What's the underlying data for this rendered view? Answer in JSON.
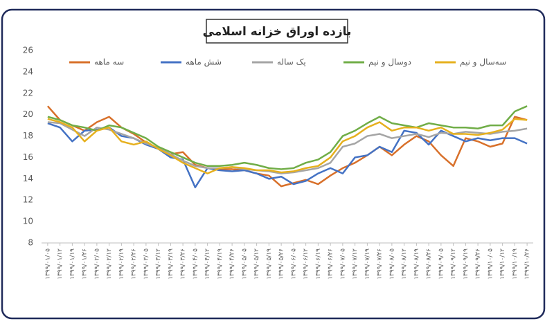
{
  "chart_data": {
    "type": "line",
    "title": "بازده اوراق خزانه اسلامی",
    "categories": [
      "۱۳۹۹/۰۱/۰۵",
      "۱۳۹۹/۰۱/۱۲",
      "۱۳۹۹/۰۱/۱۹",
      "۱۳۹۹/۰۱/۲۶",
      "۱۳۹۹/۰۲/۰۵",
      "۱۳۹۹/۰۲/۱۲",
      "۱۳۹۹/۰۲/۱۹",
      "۱۳۹۹/۰۲/۲۶",
      "۱۳۹۹/۰۳/۰۵",
      "۱۳۹۹/۰۳/۱۲",
      "۱۳۹۹/۰۳/۱۹",
      "۱۳۹۹/۰۳/۲۶",
      "۱۳۹۹/۰۴/۰۵",
      "۱۳۹۹/۰۴/۱۲",
      "۱۳۹۹/۰۴/۱۹",
      "۱۳۹۹/۰۴/۲۶",
      "۱۳۹۹/۰۵/۰۵",
      "۱۳۹۹/۰۵/۱۲",
      "۱۳۹۹/۰۵/۱۹",
      "۱۳۹۹/۰۵/۲۶",
      "۱۳۹۹/۰۶/۰۵",
      "۱۳۹۹/۰۶/۱۲",
      "۱۳۹۹/۰۶/۱۹",
      "۱۳۹۹/۰۶/۲۶",
      "۱۳۹۹/۰۷/۰۵",
      "۱۳۹۹/۰۷/۱۲",
      "۱۳۹۹/۰۷/۱۹",
      "۱۳۹۹/۰۷/۲۶",
      "۱۳۹۹/۰۸/۰۵",
      "۱۳۹۹/۰۸/۱۲",
      "۱۳۹۹/۰۸/۱۹",
      "۱۳۹۹/۰۸/۲۶",
      "۱۳۹۹/۰۹/۰۵",
      "۱۳۹۹/۰۹/۱۲",
      "۱۳۹۹/۰۹/۱۹",
      "۱۳۹۹/۰۹/۲۶",
      "۱۳۹۹/۱۰/۰۵",
      "۱۳۹۹/۱۰/۱۲",
      "۱۳۹۹/۱۰/۱۹",
      "۱۳۹۹/۱۰/۲۶"
    ],
    "series": [
      {
        "name": "سه ماهه",
        "color": "#d8702a",
        "values": [
          20.8,
          19.5,
          19,
          18.5,
          19.3,
          19.8,
          18.8,
          18.2,
          17.4,
          16.8,
          16.3,
          16.5,
          15.3,
          15,
          14.9,
          14.9,
          14.8,
          14.5,
          14.3,
          13.3,
          13.6,
          13.9,
          13.5,
          14.3,
          15,
          15.5,
          16.2,
          17,
          16.2,
          17.2,
          18,
          17.5,
          16.2,
          15.2,
          17.8,
          17.5,
          17,
          17.3,
          19.8,
          19.5
        ]
      },
      {
        "name": "شش ماهه",
        "color": "#4472c4",
        "values": [
          19.2,
          18.8,
          17.5,
          18.5,
          18.6,
          18.8,
          18,
          17.8,
          17.2,
          16.8,
          16,
          15.8,
          13.2,
          15,
          14.8,
          14.7,
          14.8,
          14.5,
          14,
          14.2,
          13.5,
          13.8,
          14.5,
          15,
          14.5,
          16,
          16.2,
          17,
          16.5,
          18.5,
          18.3,
          17.2,
          18.5,
          18,
          17.5,
          17.8,
          17.6,
          17.8,
          17.8,
          17.3
        ]
      },
      {
        "name": "یک ساله",
        "color": "#a5a5a5",
        "values": [
          19.3,
          19.2,
          18.6,
          18,
          18.8,
          18.6,
          18.2,
          17.8,
          17.3,
          16.9,
          16.3,
          15.7,
          15.2,
          15,
          15,
          15.1,
          14.9,
          14.8,
          14.7,
          14.5,
          14.6,
          14.8,
          15,
          15.5,
          17,
          17.3,
          18,
          18.2,
          17.8,
          18,
          18.2,
          17.9,
          18.3,
          18.2,
          18.4,
          18.3,
          18.2,
          18.4,
          18.5,
          18.7
        ]
      },
      {
        "name": "دوسال و نیم",
        "color": "#70ad47",
        "values": [
          19.8,
          19.5,
          19,
          18.8,
          18.5,
          19,
          18.8,
          18.3,
          17.8,
          17,
          16.5,
          16,
          15.5,
          15.2,
          15.2,
          15.3,
          15.5,
          15.3,
          15,
          14.9,
          15,
          15.5,
          15.8,
          16.5,
          18,
          18.5,
          19.2,
          19.8,
          19.2,
          19,
          18.8,
          19.2,
          19,
          18.8,
          18.8,
          18.7,
          19,
          19,
          20.3,
          20.8
        ]
      },
      {
        "name": "سه‌سال و نیم",
        "color": "#e6b01e",
        "values": [
          19.6,
          19.3,
          18.8,
          17.5,
          18.5,
          18.8,
          17.5,
          17.2,
          17.5,
          16.8,
          16.2,
          15.5,
          15,
          14.5,
          15,
          15.1,
          15,
          14.8,
          14.8,
          14.6,
          14.7,
          15,
          15.2,
          16,
          17.5,
          18,
          18.8,
          19.3,
          18.5,
          18.8,
          18.8,
          18.5,
          18.8,
          18.2,
          18.2,
          18.1,
          18.3,
          18.6,
          19.6,
          19.5
        ]
      }
    ],
    "ylim": [
      8,
      26
    ],
    "yticks": [
      8,
      10,
      12,
      14,
      16,
      18,
      20,
      22,
      24,
      26
    ],
    "grid": false
  }
}
